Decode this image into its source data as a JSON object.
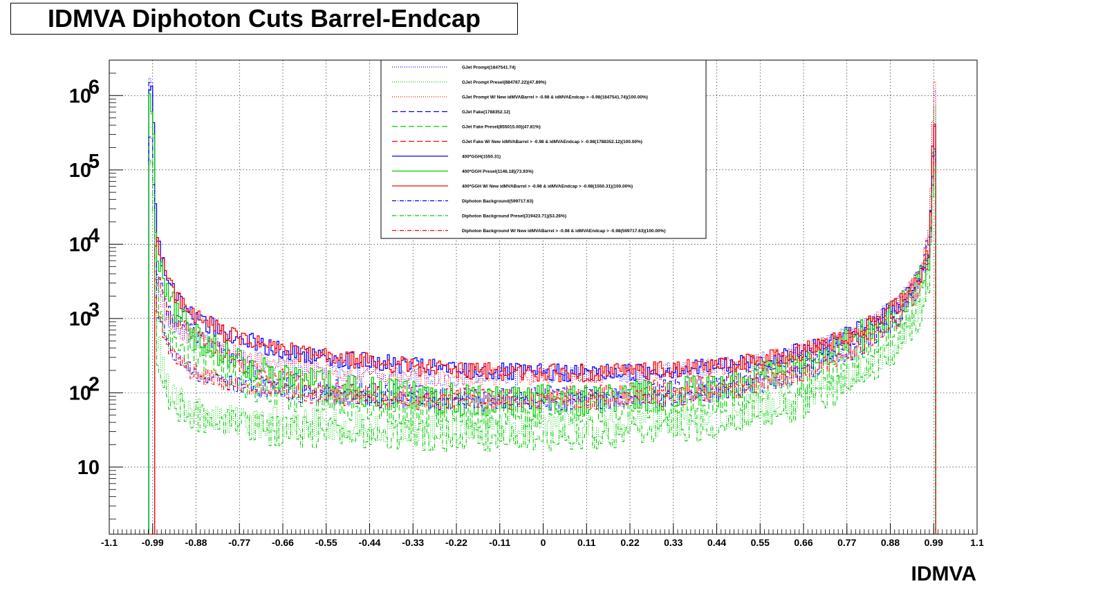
{
  "title": "IDMVA Diphoton Cuts Barrel-Endcap",
  "chart_data": {
    "type": "line",
    "histogram": true,
    "xlabel": "IDMVA",
    "ylabel": "",
    "x_tick_labels": [
      "-1.1",
      "-0.99",
      "-0.88",
      "-0.77",
      "-0.66",
      "-0.55",
      "-0.44",
      "-0.33",
      "-0.22",
      "-0.11",
      "0",
      "0.11",
      "0.22",
      "0.33",
      "0.44",
      "0.55",
      "0.66",
      "0.77",
      "0.88",
      "0.99",
      "1.1"
    ],
    "x_ticks": [
      -1.1,
      -0.99,
      -0.88,
      -0.77,
      -0.66,
      -0.55,
      -0.44,
      -0.33,
      -0.22,
      -0.11,
      0,
      0.11,
      0.22,
      0.33,
      0.44,
      0.55,
      0.66,
      0.77,
      0.88,
      0.99,
      1.1
    ],
    "xlim": [
      -1.1,
      1.1
    ],
    "ylim": [
      1.25,
      3000000
    ],
    "y_scale": "log",
    "y_ticks": [
      {
        "value": 10,
        "base": "10",
        "exp": ""
      },
      {
        "value": 100,
        "base": "10",
        "exp": "2"
      },
      {
        "value": 1000,
        "base": "10",
        "exp": "3"
      },
      {
        "value": 10000,
        "base": "10",
        "exp": "4"
      },
      {
        "value": 100000,
        "base": "10",
        "exp": "5"
      },
      {
        "value": 1000000,
        "base": "10",
        "exp": "6"
      }
    ],
    "grid": true,
    "legend_position": "top-center",
    "series": [
      {
        "name": "GJet Prompt(1847541.74)",
        "color": "#0000ff",
        "style": "dotted",
        "x": [
          -0.99,
          -0.98,
          -0.95,
          -0.9,
          -0.8,
          -0.7,
          -0.6,
          -0.5,
          -0.4,
          -0.3,
          -0.2,
          -0.1,
          0,
          0.1,
          0.2,
          0.3,
          0.4,
          0.5,
          0.6,
          0.7,
          0.8,
          0.9,
          0.95,
          0.98,
          0.99,
          1.0
        ],
        "values": [
          1500000,
          3000,
          900,
          600,
          350,
          260,
          210,
          180,
          170,
          160,
          160,
          165,
          170,
          175,
          180,
          190,
          210,
          240,
          300,
          420,
          700,
          1500,
          3500,
          15000,
          1500000,
          0
        ]
      },
      {
        "name": "GJet Prompt Presel(884787.22)(47.89%)",
        "color": "#00cc00",
        "style": "dotted",
        "x": [
          -0.99,
          -0.98,
          -0.95,
          -0.9,
          -0.8,
          -0.7,
          -0.6,
          -0.5,
          -0.4,
          -0.3,
          -0.2,
          -0.1,
          0,
          0.1,
          0.2,
          0.3,
          0.4,
          0.5,
          0.6,
          0.7,
          0.8,
          0.9,
          0.95,
          0.98,
          0.99,
          1.0
        ],
        "values": [
          600000,
          500,
          120,
          60,
          45,
          40,
          38,
          36,
          36,
          35,
          36,
          36,
          37,
          38,
          40,
          42,
          45,
          55,
          70,
          100,
          180,
          450,
          1200,
          6000,
          900000,
          0
        ]
      },
      {
        "name": "GJet Prompt W/ New idMVABarrel > -0.98 & idMVAEndcap > -0.98(1847541.74)(100.00%)",
        "color": "#ff0000",
        "style": "dotted",
        "x": [
          -0.99,
          -0.98,
          -0.95,
          -0.9,
          -0.8,
          -0.7,
          -0.6,
          -0.5,
          -0.4,
          -0.3,
          -0.2,
          -0.1,
          0,
          0.1,
          0.2,
          0.3,
          0.4,
          0.5,
          0.6,
          0.7,
          0.8,
          0.9,
          0.95,
          0.98,
          0.99,
          1.0
        ],
        "values": [
          0,
          3000,
          900,
          600,
          350,
          260,
          210,
          180,
          170,
          160,
          160,
          165,
          170,
          175,
          180,
          190,
          210,
          240,
          300,
          420,
          700,
          1500,
          3500,
          15000,
          1500000,
          0
        ]
      },
      {
        "name": "GJet Fake(1788352.12)",
        "color": "#0000ff",
        "style": "dashed",
        "x": [
          -0.99,
          -0.98,
          -0.95,
          -0.9,
          -0.8,
          -0.7,
          -0.6,
          -0.5,
          -0.4,
          -0.3,
          -0.2,
          -0.1,
          0,
          0.1,
          0.2,
          0.3,
          0.4,
          0.5,
          0.6,
          0.7,
          0.8,
          0.9,
          0.95,
          0.98,
          0.99,
          1.0
        ],
        "values": [
          1400000,
          4000,
          1200,
          700,
          300,
          180,
          130,
          110,
          100,
          95,
          90,
          90,
          95,
          100,
          105,
          115,
          130,
          160,
          220,
          330,
          600,
          1500,
          4000,
          12000,
          200000,
          0
        ]
      },
      {
        "name": "GJet Fake Presel(855015.00)(47.81%)",
        "color": "#00cc00",
        "style": "dashed",
        "x": [
          -0.99,
          -0.98,
          -0.95,
          -0.9,
          -0.8,
          -0.7,
          -0.6,
          -0.5,
          -0.4,
          -0.3,
          -0.2,
          -0.1,
          0,
          0.1,
          0.2,
          0.3,
          0.4,
          0.5,
          0.6,
          0.7,
          0.8,
          0.9,
          0.95,
          0.98,
          0.99,
          1.0
        ],
        "values": [
          500000,
          2000,
          600,
          320,
          170,
          110,
          80,
          70,
          62,
          58,
          55,
          55,
          56,
          58,
          62,
          68,
          75,
          90,
          120,
          180,
          320,
          800,
          2000,
          6000,
          100000,
          0
        ]
      },
      {
        "name": "GJet Fake W/ New idMVABarrel > -0.98 & idMVAEndcap > -0.98(1788352.12)(100.00%)",
        "color": "#ff0000",
        "style": "dashed",
        "x": [
          -0.99,
          -0.98,
          -0.95,
          -0.9,
          -0.8,
          -0.7,
          -0.6,
          -0.5,
          -0.4,
          -0.3,
          -0.2,
          -0.1,
          0,
          0.1,
          0.2,
          0.3,
          0.4,
          0.5,
          0.6,
          0.7,
          0.8,
          0.9,
          0.95,
          0.98,
          0.99,
          1.0
        ],
        "values": [
          0,
          4000,
          1200,
          700,
          300,
          180,
          130,
          110,
          100,
          95,
          90,
          90,
          95,
          100,
          105,
          115,
          130,
          160,
          220,
          330,
          600,
          1500,
          4000,
          12000,
          200000,
          0
        ]
      },
      {
        "name": "400*GGH(1550.31)",
        "color": "#0000ff",
        "style": "solid",
        "x": [
          -0.99,
          -0.98,
          -0.95,
          -0.9,
          -0.8,
          -0.7,
          -0.6,
          -0.5,
          -0.4,
          -0.3,
          -0.2,
          -0.1,
          0,
          0.1,
          0.2,
          0.3,
          0.4,
          0.5,
          0.6,
          0.7,
          0.8,
          0.9,
          0.95,
          0.98,
          0.99,
          1.0
        ],
        "values": [
          1200000,
          12000,
          3000,
          1200,
          600,
          420,
          330,
          280,
          250,
          220,
          200,
          190,
          185,
          185,
          190,
          200,
          220,
          250,
          300,
          420,
          700,
          1500,
          3000,
          8000,
          500000,
          0
        ]
      },
      {
        "name": "400*GGH Presel(1146.18)(73.93%)",
        "color": "#00cc00",
        "style": "solid",
        "x": [
          -0.99,
          -0.98,
          -0.95,
          -0.9,
          -0.8,
          -0.7,
          -0.6,
          -0.5,
          -0.4,
          -0.3,
          -0.2,
          -0.1,
          0,
          0.1,
          0.2,
          0.3,
          0.4,
          0.5,
          0.6,
          0.7,
          0.8,
          0.9,
          0.95,
          0.98,
          0.99,
          1.0
        ],
        "values": [
          800000,
          6000,
          1800,
          700,
          300,
          200,
          140,
          110,
          95,
          85,
          80,
          78,
          78,
          80,
          85,
          95,
          110,
          140,
          190,
          300,
          550,
          1200,
          2500,
          6000,
          300000,
          0
        ]
      },
      {
        "name": "400*GGH W/ New idMVABarrel > -0.98 & idMVAEndcap > -0.98(1550.31)(100.00%)",
        "color": "#ff0000",
        "style": "solid",
        "x": [
          -0.99,
          -0.98,
          -0.95,
          -0.9,
          -0.8,
          -0.7,
          -0.6,
          -0.5,
          -0.4,
          -0.3,
          -0.2,
          -0.1,
          0,
          0.1,
          0.2,
          0.3,
          0.4,
          0.5,
          0.6,
          0.7,
          0.8,
          0.9,
          0.95,
          0.98,
          0.99,
          1.0
        ],
        "values": [
          0,
          12000,
          3000,
          1200,
          600,
          420,
          330,
          280,
          250,
          220,
          200,
          190,
          185,
          185,
          190,
          200,
          220,
          250,
          300,
          420,
          700,
          1500,
          3000,
          8000,
          500000,
          0
        ]
      },
      {
        "name": "Diphoton Background(599717.63)",
        "color": "#0000ff",
        "style": "dashdot",
        "x": [
          -0.99,
          -0.98,
          -0.95,
          -0.9,
          -0.8,
          -0.7,
          -0.6,
          -0.5,
          -0.4,
          -0.3,
          -0.2,
          -0.1,
          0,
          0.1,
          0.2,
          0.3,
          0.4,
          0.5,
          0.6,
          0.7,
          0.8,
          0.9,
          0.95,
          0.98,
          0.99,
          1.0
        ],
        "values": [
          300000,
          1500,
          400,
          200,
          130,
          110,
          95,
          88,
          82,
          78,
          75,
          74,
          75,
          77,
          80,
          85,
          95,
          115,
          150,
          220,
          400,
          1000,
          2500,
          7000,
          150000,
          0
        ]
      },
      {
        "name": "Diphoton Background Presel(319423.71)(53.26%)",
        "color": "#00cc00",
        "style": "dashdot",
        "x": [
          -0.99,
          -0.98,
          -0.95,
          -0.9,
          -0.8,
          -0.7,
          -0.6,
          -0.5,
          -0.4,
          -0.3,
          -0.2,
          -0.1,
          0,
          0.1,
          0.2,
          0.3,
          0.4,
          0.5,
          0.6,
          0.7,
          0.8,
          0.9,
          0.95,
          0.98,
          0.99,
          1.0
        ],
        "values": [
          100000,
          300,
          90,
          50,
          38,
          32,
          30,
          28,
          27,
          26,
          26,
          26,
          27,
          28,
          30,
          32,
          36,
          44,
          58,
          85,
          160,
          400,
          1000,
          3000,
          80000,
          0
        ]
      },
      {
        "name": "Diphoton Background W/ New idMVABarrel > -0.98 & idMVAEndcap > -0.98(599717.63)(100.00%)",
        "color": "#ff0000",
        "style": "dashdot",
        "x": [
          -0.99,
          -0.98,
          -0.95,
          -0.9,
          -0.8,
          -0.7,
          -0.6,
          -0.5,
          -0.4,
          -0.3,
          -0.2,
          -0.1,
          0,
          0.1,
          0.2,
          0.3,
          0.4,
          0.5,
          0.6,
          0.7,
          0.8,
          0.9,
          0.95,
          0.98,
          0.99,
          1.0
        ],
        "values": [
          0,
          1500,
          400,
          200,
          130,
          110,
          95,
          88,
          82,
          78,
          75,
          74,
          75,
          77,
          80,
          85,
          95,
          115,
          150,
          220,
          400,
          1000,
          2500,
          7000,
          150000,
          0
        ]
      }
    ]
  }
}
